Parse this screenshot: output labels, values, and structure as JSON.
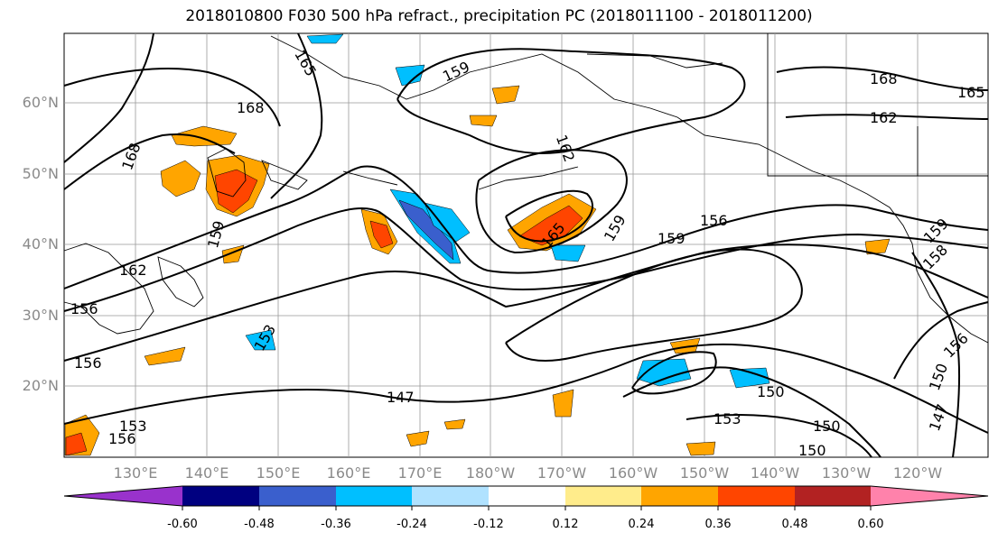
{
  "title": "2018010800 F030 500 hPa refract., precipitation PC (2018011100 - 2018011200)",
  "lat_labels": [
    "60°N",
    "50°N",
    "40°N",
    "30°N",
    "20°N"
  ],
  "lon_labels": [
    "130°E",
    "140°E",
    "150°E",
    "160°E",
    "170°E",
    "180°W",
    "170°W",
    "160°W",
    "150°W",
    "140°W",
    "130°W",
    "120°W"
  ],
  "contour_labels": [
    "165",
    "168",
    "168",
    "159",
    "162",
    "156",
    "156",
    "153",
    "153",
    "156",
    "147",
    "150",
    "153",
    "150",
    "150",
    "147",
    "150",
    "159",
    "156",
    "165",
    "159",
    "162",
    "168",
    "165",
    "162",
    "159",
    "158",
    "156",
    "159"
  ],
  "colorbar": {
    "colors": [
      "#9932cc",
      "#000080",
      "#3a5fcd",
      "#00bfff",
      "#b0e2ff",
      "#ffffff",
      "#ffec8b",
      "#ffa500",
      "#ff4500",
      "#b22222",
      "#ff82ab"
    ],
    "ticks": [
      "-0.60",
      "-0.48",
      "-0.36",
      "-0.24",
      "-0.12",
      "0.12",
      "0.24",
      "0.36",
      "0.48",
      "0.60"
    ]
  }
}
